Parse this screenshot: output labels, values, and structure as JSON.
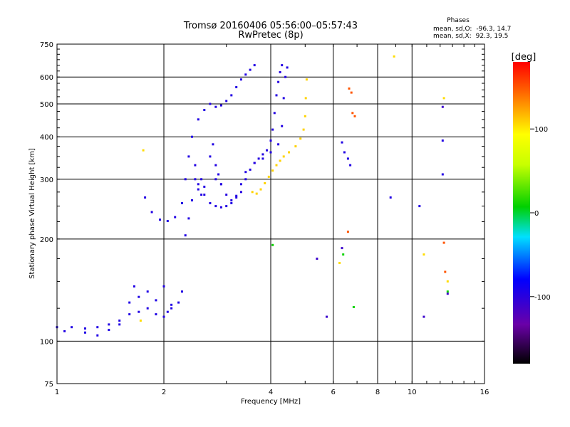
{
  "chart_data": {
    "type": "scatter",
    "title": "Tromsø 20160406 05:56:00–05:57:43",
    "subtitle": "RwPretec (8p)",
    "xlabel": "Frequency [MHz]",
    "ylabel": "Stationary phase Virtual Height [km]",
    "xscale": "log",
    "yscale": "log",
    "xlim": [
      1,
      16
    ],
    "ylim": [
      75,
      750
    ],
    "x_ticks": [
      1,
      2,
      4,
      6,
      8,
      10,
      16
    ],
    "x_tick_labels": [
      "1",
      "2",
      "4",
      "6",
      "8",
      "10",
      "16"
    ],
    "y_ticks": [
      75,
      100,
      200,
      300,
      400,
      500,
      600,
      750
    ],
    "y_tick_labels": [
      "75",
      "100",
      "200",
      "300",
      "400",
      "500",
      "600",
      "750"
    ],
    "grid": true,
    "stats_heading": "Phases",
    "stats": [
      {
        "label": "mean, sd,O:",
        "value": "-96.3, 14.7"
      },
      {
        "label": "mean, sd,X:",
        "value": " 92.3, 19.5"
      }
    ],
    "colorbar": {
      "label": "[deg]",
      "range": [
        -180,
        180
      ],
      "ticks": [
        100,
        0,
        -100
      ],
      "tick_labels": [
        "100",
        "0",
        "-100"
      ]
    },
    "series": [
      {
        "traces": [
          {
            "phase": -96,
            "points": [
              [
                1.0,
                110
              ],
              [
                1.05,
                107
              ],
              [
                1.1,
                110
              ],
              [
                1.2,
                109
              ],
              [
                1.3,
                110
              ],
              [
                1.4,
                112
              ],
              [
                1.5,
                115
              ],
              [
                1.6,
                120
              ],
              [
                1.7,
                122
              ],
              [
                1.8,
                125
              ],
              [
                1.9,
                120
              ],
              [
                2.0,
                118
              ],
              [
                2.05,
                122
              ],
              [
                2.1,
                125
              ],
              [
                2.2,
                130
              ],
              [
                2.25,
                140
              ]
            ]
          },
          {
            "phase": -95,
            "points": [
              [
                1.2,
                106
              ],
              [
                1.3,
                104
              ],
              [
                1.4,
                108
              ],
              [
                1.5,
                112
              ],
              [
                1.6,
                130
              ],
              [
                1.65,
                145
              ],
              [
                1.7,
                135
              ],
              [
                1.8,
                140
              ],
              [
                1.9,
                132
              ],
              [
                2.0,
                145
              ],
              [
                2.1,
                128
              ]
            ]
          },
          {
            "phase": -96,
            "points": [
              [
                1.77,
                265
              ],
              [
                1.85,
                240
              ],
              [
                1.95,
                228
              ],
              [
                2.05,
                226
              ],
              [
                2.15,
                232
              ],
              [
                2.25,
                255
              ],
              [
                2.3,
                300
              ],
              [
                2.35,
                350
              ],
              [
                2.4,
                400
              ],
              [
                2.45,
                330
              ],
              [
                2.5,
                290
              ],
              [
                2.55,
                270
              ],
              [
                2.6,
                285
              ],
              [
                2.7,
                350
              ],
              [
                2.75,
                380
              ],
              [
                2.8,
                330
              ],
              [
                2.85,
                310
              ],
              [
                2.9,
                290
              ]
            ]
          },
          {
            "phase": -96,
            "points": [
              [
                2.3,
                205
              ],
              [
                2.35,
                230
              ],
              [
                2.4,
                260
              ],
              [
                2.45,
                300
              ],
              [
                2.5,
                280
              ],
              [
                2.55,
                300
              ],
              [
                2.6,
                270
              ],
              [
                2.7,
                255
              ],
              [
                2.8,
                250
              ],
              [
                2.9,
                248
              ],
              [
                3.0,
                250
              ],
              [
                3.1,
                255
              ],
              [
                3.2,
                268
              ],
              [
                3.3,
                290
              ],
              [
                3.4,
                315
              ],
              [
                3.6,
                335
              ],
              [
                3.8,
                345
              ],
              [
                4.0,
                360
              ],
              [
                4.2,
                380
              ],
              [
                4.3,
                430
              ],
              [
                4.35,
                520
              ],
              [
                4.4,
                600
              ],
              [
                4.45,
                640
              ]
            ]
          },
          {
            "phase": -96,
            "points": [
              [
                2.5,
                450
              ],
              [
                2.6,
                480
              ],
              [
                2.7,
                500
              ],
              [
                2.8,
                490
              ],
              [
                2.9,
                495
              ],
              [
                3.0,
                510
              ],
              [
                3.1,
                530
              ],
              [
                3.2,
                560
              ],
              [
                3.3,
                590
              ],
              [
                3.4,
                610
              ],
              [
                3.5,
                630
              ],
              [
                3.6,
                650
              ]
            ]
          },
          {
            "phase": -97,
            "points": [
              [
                2.8,
                300
              ],
              [
                2.9,
                290
              ],
              [
                3.0,
                270
              ],
              [
                3.1,
                260
              ],
              [
                3.2,
                265
              ],
              [
                3.3,
                275
              ],
              [
                3.4,
                300
              ],
              [
                3.5,
                320
              ],
              [
                3.6,
                335
              ],
              [
                3.7,
                345
              ],
              [
                3.8,
                355
              ],
              [
                3.9,
                365
              ],
              [
                4.0,
                390
              ],
              [
                4.05,
                420
              ],
              [
                4.1,
                470
              ],
              [
                4.15,
                530
              ],
              [
                4.2,
                580
              ],
              [
                4.25,
                620
              ],
              [
                4.3,
                650
              ]
            ]
          },
          {
            "phase": 108,
            "points": [
              [
                3.55,
                275
              ],
              [
                3.65,
                272
              ],
              [
                3.75,
                280
              ],
              [
                3.85,
                292
              ],
              [
                3.95,
                305
              ],
              [
                4.05,
                318
              ],
              [
                4.15,
                330
              ],
              [
                4.25,
                340
              ],
              [
                4.35,
                350
              ],
              [
                4.5,
                360
              ],
              [
                4.7,
                375
              ],
              [
                4.85,
                395
              ],
              [
                4.95,
                420
              ],
              [
                5.0,
                460
              ],
              [
                5.02,
                520
              ],
              [
                5.05,
                590
              ]
            ]
          },
          {
            "phase": -96,
            "points": [
              [
                6.35,
                385
              ],
              [
                6.45,
                360
              ],
              [
                6.6,
                345
              ],
              [
                6.7,
                330
              ],
              [
                8.7,
                265
              ],
              [
                10.5,
                250
              ],
              [
                12.2,
                310
              ],
              [
                12.2,
                390
              ]
            ]
          },
          {
            "phase": 150,
            "points": [
              [
                6.65,
                555
              ],
              [
                6.75,
                540
              ],
              [
                6.8,
                470
              ],
              [
                6.9,
                460
              ],
              [
                6.6,
                210
              ],
              [
                12.3,
                195
              ],
              [
                12.4,
                160
              ]
            ]
          },
          {
            "phase": 105,
            "points": [
              [
                1.75,
                365
              ],
              [
                1.72,
                115
              ],
              [
                6.25,
                170
              ],
              [
                10.8,
                180
              ],
              [
                12.3,
                520
              ],
              [
                8.9,
                690
              ],
              [
                12.6,
                150
              ]
            ]
          },
          {
            "phase": 10,
            "points": [
              [
                6.85,
                126
              ],
              [
                4.05,
                192
              ],
              [
                6.4,
                180
              ],
              [
                12.6,
                140
              ]
            ]
          },
          {
            "phase": -110,
            "points": [
              [
                5.4,
                175
              ],
              [
                6.35,
                188
              ],
              [
                5.75,
                118
              ],
              [
                10.8,
                118
              ],
              [
                12.2,
                490
              ],
              [
                12.6,
                138
              ]
            ]
          }
        ]
      }
    ]
  }
}
